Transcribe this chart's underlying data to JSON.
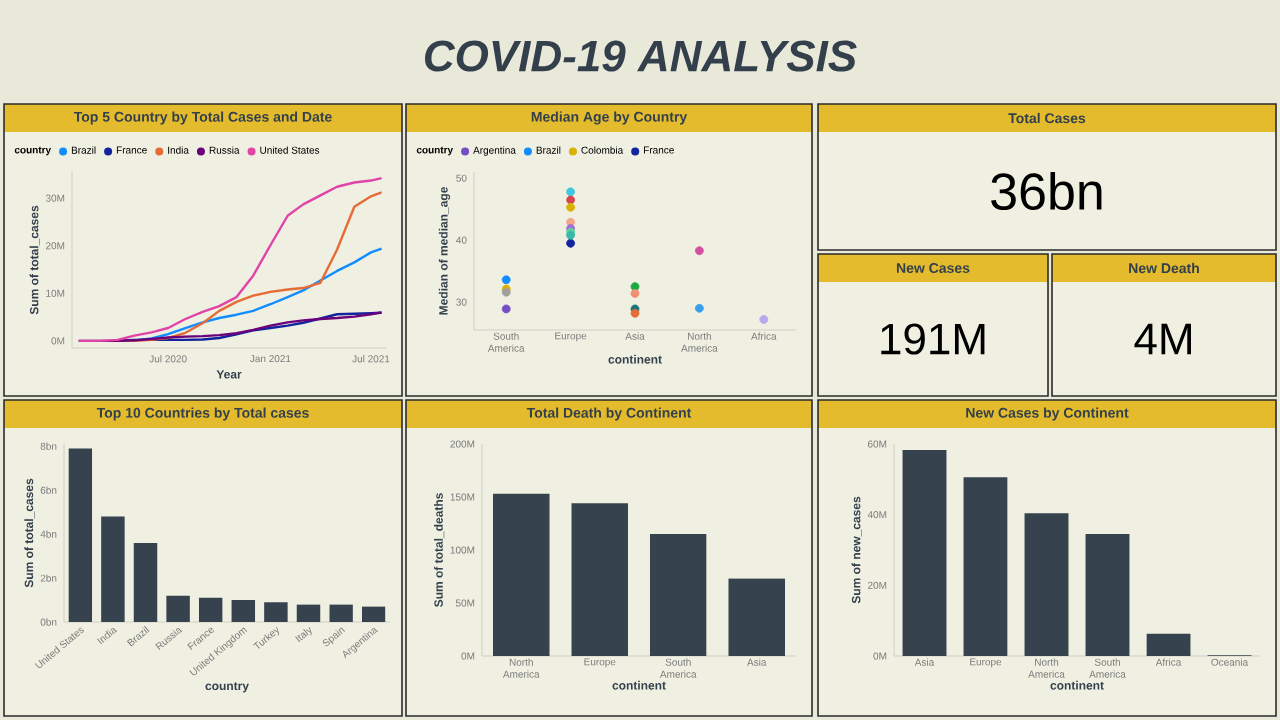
{
  "chart_data": [
    {
      "type": "other",
      "title": "COVID-19 ANALYSIS"
    },
    {
      "type": "line",
      "title": "Top 5 Country by Total Cases and Date",
      "xlabel": "Year",
      "ylabel": "Sum of total_cases",
      "legend_title": "country",
      "legend": "top left",
      "x": [
        "2020-01-22",
        "2020-03-01",
        "2020-04-01",
        "2020-05-01",
        "2020-06-01",
        "2020-07-01",
        "2020-08-01",
        "2020-09-01",
        "2020-10-01",
        "2020-11-01",
        "2020-12-01",
        "2021-01-01",
        "2021-02-01",
        "2021-03-01",
        "2021-04-01",
        "2021-05-01",
        "2021-06-01",
        "2021-07-01",
        "2021-07-20"
      ],
      "xlim": [
        "2020-01-10",
        "2021-07-28"
      ],
      "ylim": [
        -1.5,
        35.5
      ],
      "xticks": [
        {
          "value": "2020-07-01",
          "label": "Jul 2020"
        },
        {
          "value": "2021-01-01",
          "label": "Jan 2021"
        },
        {
          "value": "2021-07-01",
          "label": "Jul 2021"
        }
      ],
      "yticks": [
        {
          "value": 0,
          "label": "0M"
        },
        {
          "value": 10,
          "label": "10M"
        },
        {
          "value": 20,
          "label": "20M"
        },
        {
          "value": 30,
          "label": "30M"
        }
      ],
      "series": [
        {
          "name": "Brazil",
          "color": "#118dff",
          "values": [
            null,
            null,
            null,
            0.1,
            0.5,
            1.4,
            2.7,
            3.9,
            4.8,
            5.5,
            6.3,
            7.7,
            9.2,
            10.6,
            12.7,
            14.7,
            16.5,
            18.6,
            19.4
          ]
        },
        {
          "name": "France",
          "color": "#12239e",
          "values": [
            null,
            null,
            0.1,
            0.2,
            0.2,
            0.2,
            0.2,
            0.3,
            0.6,
            1.4,
            2.2,
            2.7,
            3.2,
            3.8,
            4.7,
            5.6,
            5.7,
            5.8,
            5.9
          ]
        },
        {
          "name": "India",
          "color": "#e66c37",
          "values": [
            null,
            null,
            0,
            0,
            0.2,
            0.6,
            1.7,
            3.7,
            6.3,
            8.2,
            9.5,
            10.3,
            10.8,
            11.1,
            12.2,
            19.2,
            28.2,
            30.4,
            31.2
          ]
        },
        {
          "name": "Russia",
          "color": "#6b007b",
          "values": [
            0,
            0,
            0,
            0.1,
            0.4,
            0.7,
            0.9,
            1.0,
            1.2,
            1.6,
            2.3,
            3.2,
            3.9,
            4.3,
            4.6,
            4.8,
            5.1,
            5.6,
            6.0
          ]
        },
        {
          "name": "United States",
          "color": "#e044a7",
          "values": [
            0,
            0,
            0.2,
            1.1,
            1.8,
            2.7,
            4.6,
            6.1,
            7.3,
            9.2,
            13.7,
            20.1,
            26.3,
            28.7,
            30.6,
            32.4,
            33.3,
            33.7,
            34.2
          ]
        }
      ]
    },
    {
      "type": "scatter",
      "title": "Median Age by Country",
      "xlabel": "continent",
      "ylabel": "Median of median_age",
      "legend_title": "country",
      "legend": "top left",
      "marker": "circle",
      "categories": [
        "South America",
        "Europe",
        "Asia",
        "North America",
        "Africa"
      ],
      "ylim": [
        25.5,
        51
      ],
      "yticks": [
        30,
        40,
        50
      ],
      "series": [
        {
          "name": "Argentina",
          "color": "#744ec2",
          "values": [
            28.9,
            null,
            null,
            null,
            null
          ]
        },
        {
          "name": "Brazil",
          "color": "#118dff",
          "values": [
            33.6,
            null,
            null,
            null,
            null
          ]
        },
        {
          "name": "Colombia",
          "color": "#d9b300",
          "values": [
            32.1,
            null,
            null,
            null,
            null
          ]
        },
        {
          "name": "France",
          "color": "#12239e",
          "values": [
            null,
            39.5,
            null,
            null,
            null
          ]
        },
        {
          "values": [
            31.6,
            47.8,
            32.5,
            38.3,
            27.2
          ],
          "colors": [
            "#a0a0a0",
            "#41c5e0",
            "#1aab40",
            "#d64f9f",
            "#b8a8f0"
          ]
        },
        {
          "values": [
            null,
            46.5,
            31.4,
            29.0,
            null
          ],
          "colors": [
            null,
            "#d64550",
            "#f08f72",
            "#3a9ee8",
            null
          ]
        },
        {
          "values": [
            null,
            45.3,
            28.9,
            null,
            null
          ],
          "colors": [
            null,
            "#d9b300",
            "#197278",
            null,
            null
          ]
        },
        {
          "values": [
            null,
            42.9,
            28.2,
            null,
            null
          ],
          "colors": [
            null,
            "#f4a68a",
            "#e66c37",
            null,
            null
          ]
        },
        {
          "values": [
            null,
            41.9,
            null,
            null,
            null
          ],
          "colors": [
            null,
            "#a66bd6",
            null,
            null,
            null
          ]
        },
        {
          "values": [
            null,
            41.3,
            null,
            null,
            null
          ],
          "colors": [
            null,
            "#5bd39e",
            null,
            null,
            null
          ]
        },
        {
          "values": [
            null,
            40.8,
            null,
            null,
            null
          ],
          "colors": [
            null,
            "#3bb7a8",
            null,
            null,
            null
          ]
        }
      ]
    },
    {
      "type": "other",
      "title": "Total Cases",
      "annotations": [
        "36bn"
      ]
    },
    {
      "type": "other",
      "title": "New Cases",
      "annotations": [
        "191M"
      ]
    },
    {
      "type": "other",
      "title": "New Death",
      "annotations": [
        "4M"
      ]
    },
    {
      "type": "bar",
      "title": "Top 10 Countries by Total cases",
      "xlabel": "country",
      "ylabel": "Sum of total_cases",
      "color": "#36434f",
      "categories": [
        "United States",
        "India",
        "Brazil",
        "Russia",
        "France",
        "United Kingdom",
        "Turkey",
        "Italy",
        "Spain",
        "Argentina"
      ],
      "values": [
        7.9,
        4.8,
        3.6,
        1.2,
        1.1,
        1.0,
        0.9,
        0.8,
        0.8,
        0.7
      ],
      "ylim": [
        0,
        8.1
      ],
      "yticks": [
        {
          "value": 0,
          "label": "0bn"
        },
        {
          "value": 2,
          "label": "2bn"
        },
        {
          "value": 4,
          "label": "4bn"
        },
        {
          "value": 6,
          "label": "6bn"
        },
        {
          "value": 8,
          "label": "8bn"
        }
      ]
    },
    {
      "type": "bar",
      "title": "Total Death by Continent",
      "xlabel": "continent",
      "ylabel": "Sum of total_deaths",
      "color": "#36434f",
      "categories": [
        "North America",
        "Europe",
        "South America",
        "Asia"
      ],
      "values": [
        153,
        144,
        115,
        73
      ],
      "ylim": [
        0,
        200
      ],
      "yticks": [
        {
          "value": 0,
          "label": "0M"
        },
        {
          "value": 50,
          "label": "50M"
        },
        {
          "value": 100,
          "label": "100M"
        },
        {
          "value": 150,
          "label": "150M"
        },
        {
          "value": 200,
          "label": "200M"
        }
      ]
    },
    {
      "type": "bar",
      "title": "New Cases by Continent",
      "xlabel": "continent",
      "ylabel": "Sum of new_cases",
      "color": "#36434f",
      "categories": [
        "Asia",
        "Europe",
        "North America",
        "South America",
        "Africa",
        "Oceania"
      ],
      "values": [
        58.3,
        50.6,
        40.4,
        34.5,
        6.3,
        0.2
      ],
      "ylim": [
        0,
        60
      ],
      "yticks": [
        {
          "value": 0,
          "label": "0M"
        },
        {
          "value": 20,
          "label": "20M"
        },
        {
          "value": 40,
          "label": "40M"
        },
        {
          "value": 60,
          "label": "60M"
        }
      ]
    }
  ]
}
